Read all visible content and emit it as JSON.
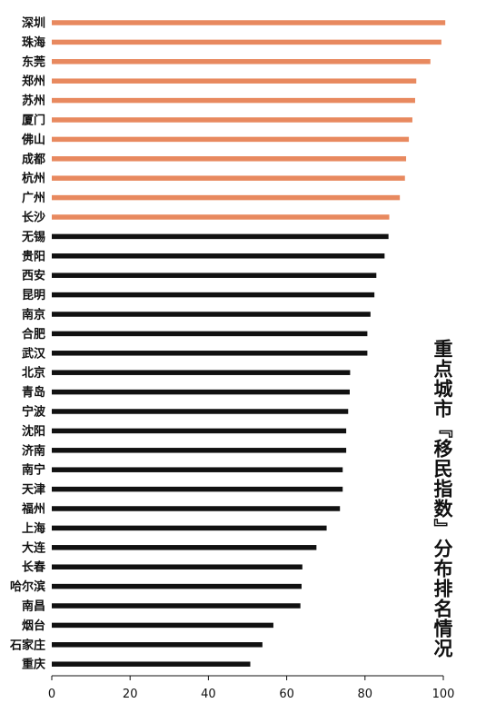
{
  "chart_data": {
    "type": "bar",
    "orientation": "horizontal",
    "title": "重点城市『移民指数』分布排名情况",
    "xlim": [
      0,
      100
    ],
    "xticks": [
      0,
      20,
      40,
      60,
      80,
      100
    ],
    "categories": [
      "深圳",
      "珠海",
      "东莞",
      "郑州",
      "苏州",
      "厦门",
      "佛山",
      "成都",
      "杭州",
      "广州",
      "长沙",
      "无锡",
      "贵阳",
      "西安",
      "昆明",
      "南京",
      "合肥",
      "武汉",
      "北京",
      "青岛",
      "宁波",
      "沈阳",
      "济南",
      "南宁",
      "天津",
      "福州",
      "上海",
      "大连",
      "长春",
      "哈尔滨",
      "南昌",
      "烟台",
      "石家庄",
      "重庆"
    ],
    "values": [
      100.5,
      99.5,
      96.7,
      93.1,
      92.8,
      92.1,
      91.2,
      90.5,
      90.2,
      88.9,
      86.2,
      86.0,
      85.0,
      82.9,
      82.4,
      81.4,
      80.6,
      80.6,
      76.2,
      76.1,
      75.7,
      75.2,
      75.2,
      74.3,
      74.3,
      73.6,
      70.2,
      67.6,
      64.0,
      63.8,
      63.5,
      56.6,
      53.8,
      50.7
    ],
    "highlight_count": 11,
    "colors": {
      "highlight": "#e8895f",
      "default": "#111111",
      "axis": "#111111"
    }
  }
}
